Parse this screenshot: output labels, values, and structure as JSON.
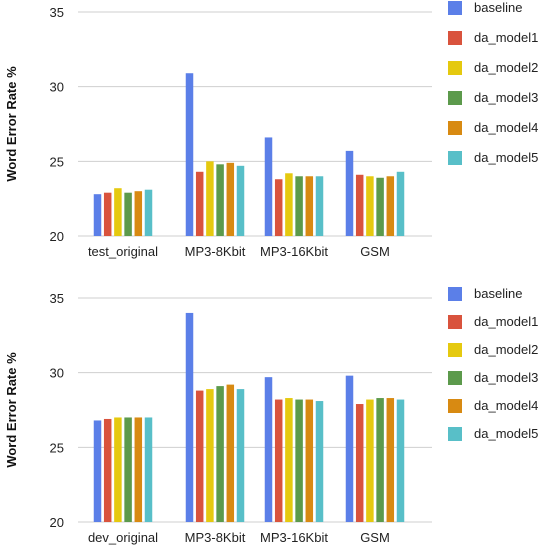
{
  "chart_data": [
    {
      "type": "bar",
      "ylabel": "Word Error Rate %",
      "ylim": [
        20,
        35
      ],
      "yticks": [
        20,
        25,
        30,
        35
      ],
      "grid": true,
      "legend_position": "right",
      "categories": [
        "test_original",
        "MP3-8Kbit",
        "MP3-16Kbit",
        "GSM"
      ],
      "series": [
        {
          "name": "baseline",
          "color": "#5b7fe8",
          "values": [
            22.8,
            30.9,
            26.6,
            25.7
          ]
        },
        {
          "name": "da_model1",
          "color": "#d9533d",
          "values": [
            22.9,
            24.3,
            23.8,
            24.1
          ]
        },
        {
          "name": "da_model2",
          "color": "#e5c90f",
          "values": [
            23.2,
            25.0,
            24.2,
            24.0
          ]
        },
        {
          "name": "da_model3",
          "color": "#5c9a4c",
          "values": [
            22.9,
            24.8,
            24.0,
            23.9
          ]
        },
        {
          "name": "da_model4",
          "color": "#d88a12",
          "values": [
            23.0,
            24.9,
            24.0,
            24.0
          ]
        },
        {
          "name": "da_model5",
          "color": "#58bfc8",
          "values": [
            23.1,
            24.7,
            24.0,
            24.3
          ]
        }
      ]
    },
    {
      "type": "bar",
      "ylabel": "Word Error Rate %",
      "ylim": [
        20,
        35
      ],
      "yticks": [
        20,
        25,
        30,
        35
      ],
      "grid": true,
      "legend_position": "right",
      "categories": [
        "dev_original",
        "MP3-8Kbit",
        "MP3-16Kbit",
        "GSM"
      ],
      "series": [
        {
          "name": "baseline",
          "color": "#5b7fe8",
          "values": [
            26.8,
            34.0,
            29.7,
            29.8
          ]
        },
        {
          "name": "da_model1",
          "color": "#d9533d",
          "values": [
            26.9,
            28.8,
            28.2,
            27.9
          ]
        },
        {
          "name": "da_model2",
          "color": "#e5c90f",
          "values": [
            27.0,
            28.9,
            28.3,
            28.2
          ]
        },
        {
          "name": "da_model3",
          "color": "#5c9a4c",
          "values": [
            27.0,
            29.1,
            28.2,
            28.3
          ]
        },
        {
          "name": "da_model4",
          "color": "#d88a12",
          "values": [
            27.0,
            29.2,
            28.2,
            28.3
          ]
        },
        {
          "name": "da_model5",
          "color": "#58bfc8",
          "values": [
            27.0,
            28.9,
            28.1,
            28.2
          ]
        }
      ]
    }
  ]
}
